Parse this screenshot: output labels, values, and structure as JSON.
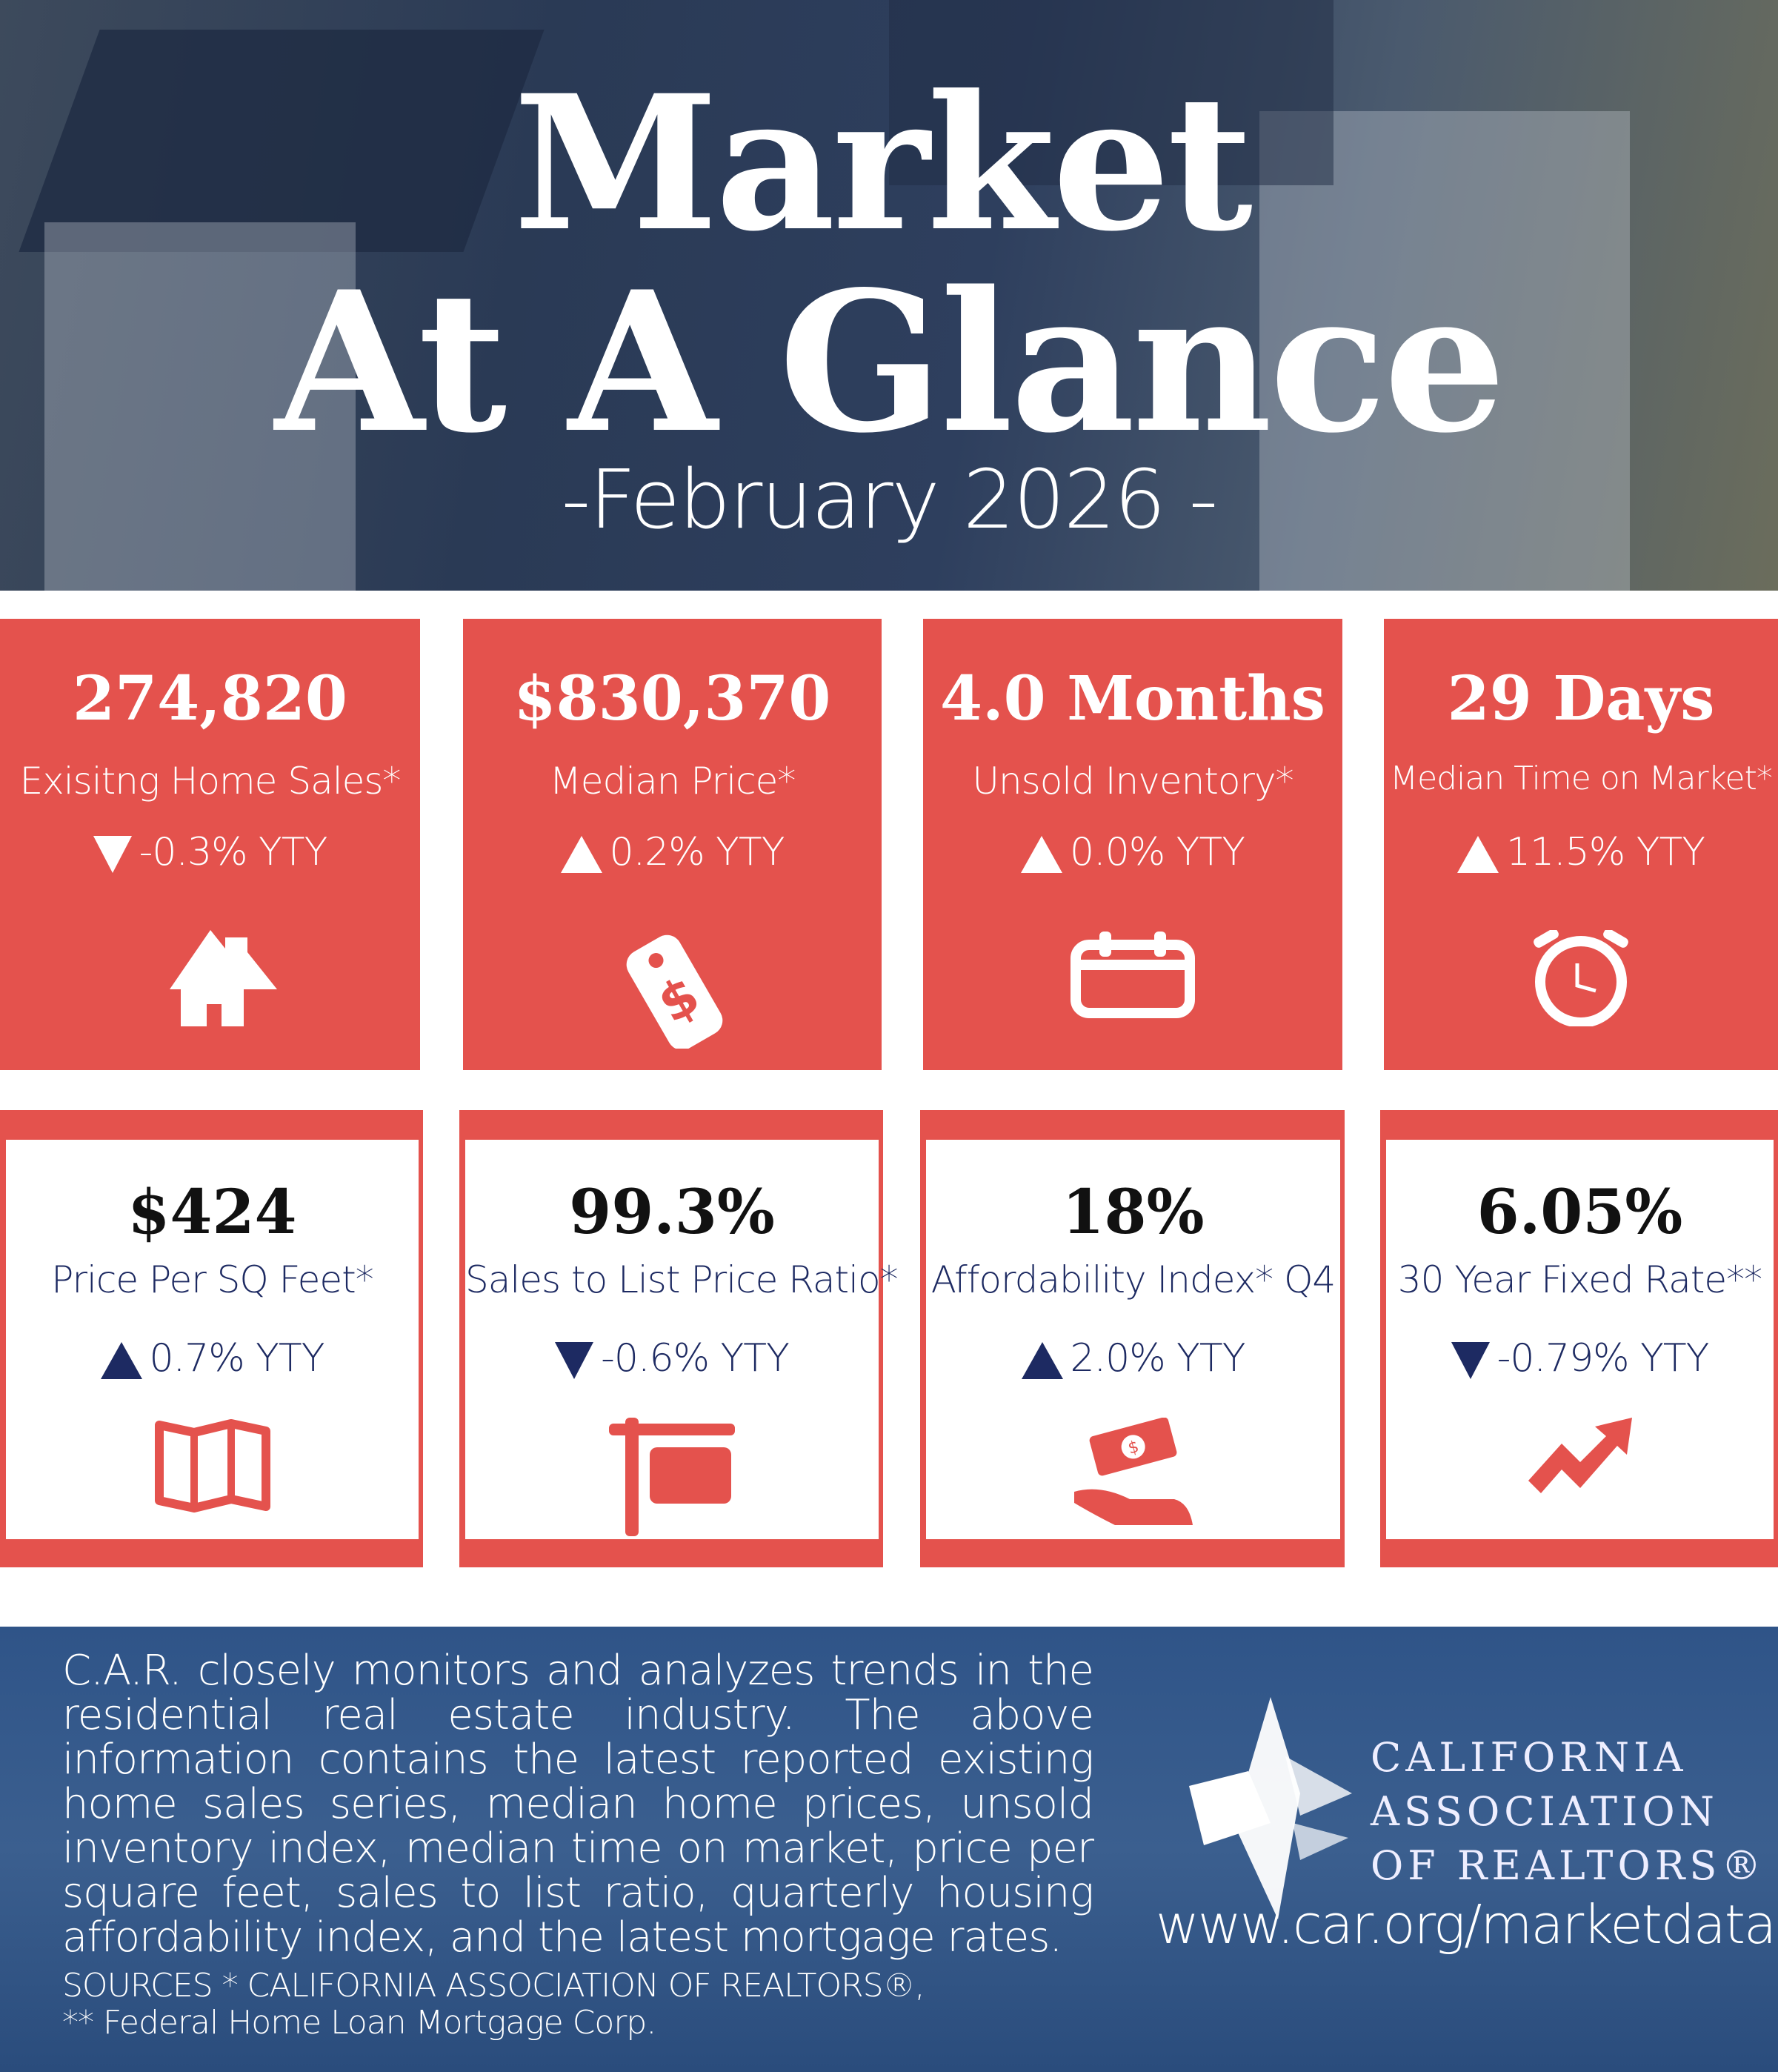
{
  "header": {
    "title_line1": "Market",
    "title_line2": "At A Glance",
    "subtitle": "-February 2026 -"
  },
  "colors": {
    "accent_red": "#e4524d",
    "navy": "#1d2a62",
    "footer_blue": "#2f5488"
  },
  "top_cards": [
    {
      "value": "274,820",
      "label": "Exisitng Home Sales*",
      "change": "-0.3% YTY",
      "direction": "down",
      "icon": "house-icon"
    },
    {
      "value": "$830,370",
      "label": "Median Price*",
      "change": "0.2% YTY",
      "direction": "up",
      "icon": "price-tag-icon"
    },
    {
      "value": "4.0 Months",
      "label": "Unsold Inventory*",
      "change": "0.0% YTY",
      "direction": "up",
      "icon": "calendar-icon"
    },
    {
      "value": "29 Days",
      "label": "Median Time on Market*",
      "change": "11.5% YTY",
      "direction": "up",
      "icon": "alarm-clock-icon"
    }
  ],
  "bottom_cards": [
    {
      "value": "$424",
      "label": "Price Per SQ Feet*",
      "change": "0.7% YTY",
      "direction": "up",
      "icon": "map-icon"
    },
    {
      "value": "99.3%",
      "label": "Sales to List Price Ratio*",
      "change": "-0.6% YTY",
      "direction": "down",
      "icon": "for-sale-sign-icon"
    },
    {
      "value": "18%",
      "label": "Affordability Index* Q4",
      "change": "2.0% YTY",
      "direction": "up",
      "icon": "money-hand-icon"
    },
    {
      "value": "6.05%",
      "label": "30 Year Fixed Rate**",
      "change": "-0.79% YTY",
      "direction": "down",
      "icon": "trend-arrow-icon"
    }
  ],
  "footer": {
    "paragraph": "C.A.R. closely monitors and analyzes trends in the residential real estate industry. The above information contains the latest reported existing home sales series, median home prices, unsold inventory index, median time on market, price per square feet, sales to list ratio, quarterly housing affordability index, and the latest mortgage rates.",
    "sources_line1": "SOURCES * CALIFORNIA ASSOCIATION OF REALTORS®,",
    "sources_line2": "** Federal Home Loan Mortgage Corp.",
    "logo_line1": "CALIFORNIA",
    "logo_line2": "ASSOCIATION",
    "logo_line3": "OF REALTORS®",
    "url": "www.car.org/marketdata"
  }
}
